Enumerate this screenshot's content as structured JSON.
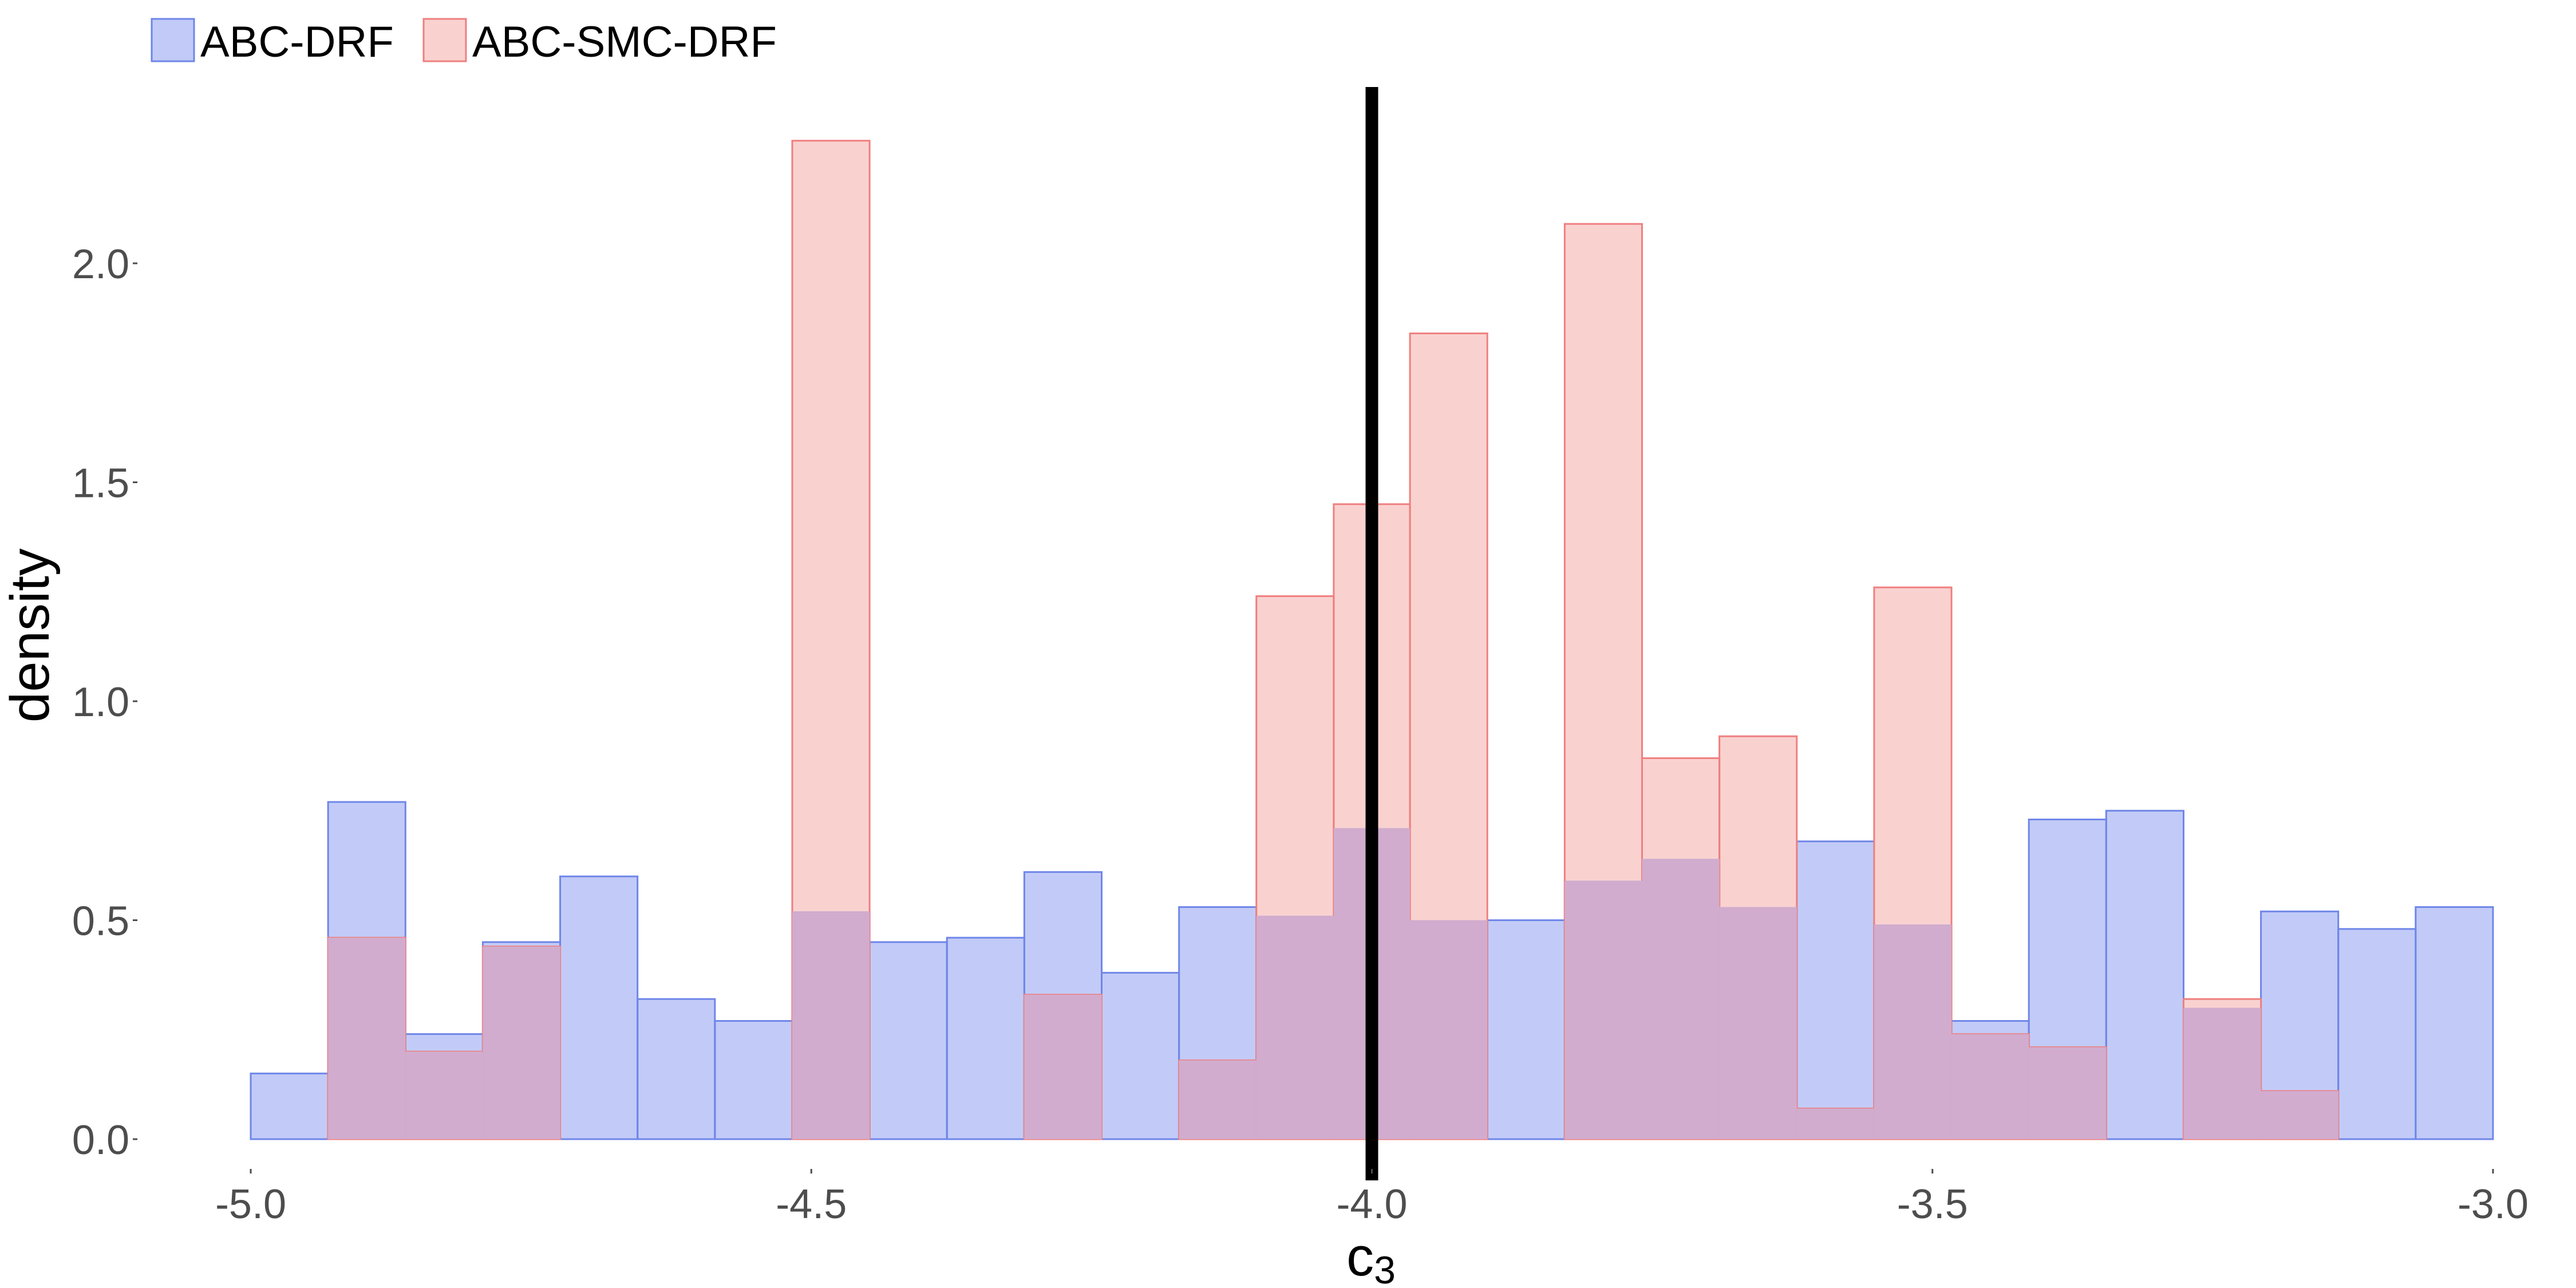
{
  "chart_data": {
    "type": "histogram",
    "title": "",
    "xlabel": "c",
    "xlabel_subscript": "3",
    "ylabel": "density",
    "xlim": [
      -5.0,
      -3.0
    ],
    "ylim": [
      0,
      2.4
    ],
    "x_ticks": [
      -5.0,
      -4.5,
      -4.0,
      -3.5,
      -3.0
    ],
    "x_tick_labels": [
      "-5.0",
      "-4.5",
      "-4.0",
      "-3.5",
      "-3.0"
    ],
    "y_ticks": [
      0,
      0.5,
      1.0,
      1.5,
      2.0
    ],
    "y_tick_labels": [
      "0.0",
      "0.5",
      "1.0",
      "1.5",
      "2.0"
    ],
    "grid": false,
    "legend_position": "top-left",
    "bin_edges": [
      -5.0,
      -4.931,
      -4.862,
      -4.793,
      -4.724,
      -4.655,
      -4.586,
      -4.517,
      -4.448,
      -4.379,
      -4.31,
      -4.241,
      -4.172,
      -4.103,
      -4.034,
      -3.966,
      -3.897,
      -3.828,
      -3.759,
      -3.69,
      -3.621,
      -3.552,
      -3.483,
      -3.414,
      -3.345,
      -3.276,
      -3.207,
      -3.138,
      -3.069,
      -3.0
    ],
    "series": [
      {
        "name": "ABC-DRF",
        "color": "#6f86e8",
        "fill": "#c2cbf7",
        "values": [
          0.15,
          0.77,
          0.24,
          0.45,
          0.6,
          0.32,
          0.27,
          0.52,
          0.45,
          0.46,
          0.61,
          0.38,
          0.53,
          0.51,
          0.71,
          0.5,
          0.5,
          0.59,
          0.64,
          0.53,
          0.68,
          0.49,
          0.27,
          0.73,
          0.75,
          0.3,
          0.52,
          0.48,
          0.53
        ]
      },
      {
        "name": "ABC-SMC-DRF",
        "color": "#ef7f7f",
        "fill": "#f9d2d0",
        "values": [
          0,
          0.46,
          0.2,
          0.44,
          0,
          0,
          0,
          2.28,
          0,
          0,
          0.33,
          0,
          0.18,
          1.24,
          1.45,
          1.84,
          0,
          2.09,
          0.87,
          0.92,
          0.07,
          1.26,
          0.24,
          0.21,
          0,
          0.32,
          0.11,
          0,
          0
        ]
      }
    ],
    "reference_line": {
      "x": -4.0,
      "color": "#000000"
    },
    "overlap_fill": "#d1acce"
  }
}
